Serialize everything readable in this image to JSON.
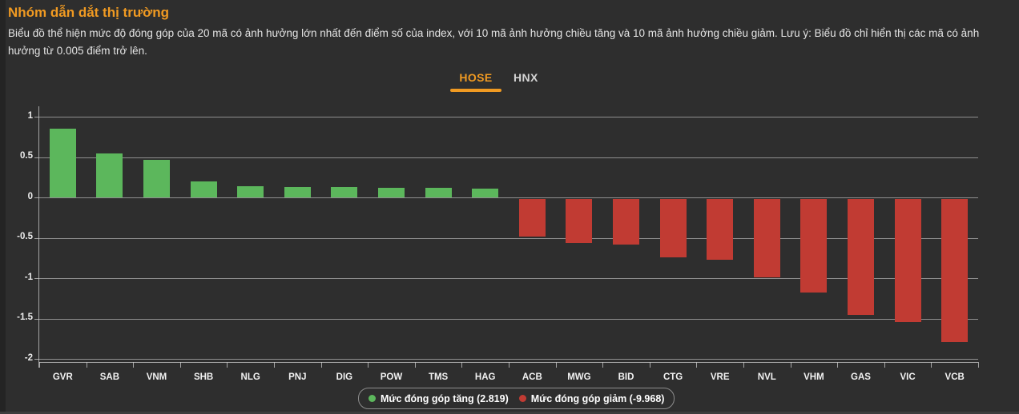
{
  "header": {
    "title": "Nhóm dẫn dắt thị trường",
    "description": "Biểu đồ thể hiện mức độ đóng góp của 20 mã có ảnh hưởng lớn nhất đến điểm số của index, với 10 mã ảnh hưởng chiều tăng và 10 mã ảnh hưởng chiều giảm. Lưu ý: Biểu đồ chỉ hiển thị các mã có ảnh hưởng từ 0.005 điểm trở lên."
  },
  "tabs": [
    {
      "label": "HOSE",
      "active": true
    },
    {
      "label": "HNX",
      "active": false
    }
  ],
  "chart_data": {
    "type": "bar",
    "title": "Nhóm dẫn dắt thị trường",
    "categories": [
      "GVR",
      "SAB",
      "VNM",
      "SHB",
      "NLG",
      "PNJ",
      "DIG",
      "POW",
      "TMS",
      "HAG",
      "ACB",
      "MWG",
      "BID",
      "CTG",
      "VRE",
      "NVL",
      "VHM",
      "GAS",
      "VIC",
      "VCB"
    ],
    "values": [
      0.86,
      0.55,
      0.47,
      0.2,
      0.14,
      0.13,
      0.13,
      0.12,
      0.12,
      0.11,
      -0.47,
      -0.55,
      -0.57,
      -0.73,
      -0.76,
      -0.98,
      -1.16,
      -1.44,
      -1.53,
      -1.78
    ],
    "yticks": [
      1,
      0.5,
      0,
      -0.5,
      -1,
      -1.5,
      -2
    ],
    "ylim": [
      -2.07,
      1.07
    ],
    "xlabel": "",
    "ylabel": "",
    "grid": true,
    "legend_position": "bottom-center",
    "up_color": "#5cb75c",
    "down_color": "#c13b33",
    "up_total": 2.819,
    "down_total": -9.968
  },
  "legend": {
    "items": [
      {
        "label": "Mức đóng góp tăng (2.819)",
        "color": "#5cb75c"
      },
      {
        "label": "Mức đóng góp giảm (-9.968)",
        "color": "#c13b33"
      }
    ]
  },
  "colors": {
    "background": "#2e2e2e",
    "accent_orange": "#f09a22",
    "grid_line": "#cccccc",
    "text_primary": "#e4e4e4",
    "inactive_tab": "#d4d4d4"
  }
}
